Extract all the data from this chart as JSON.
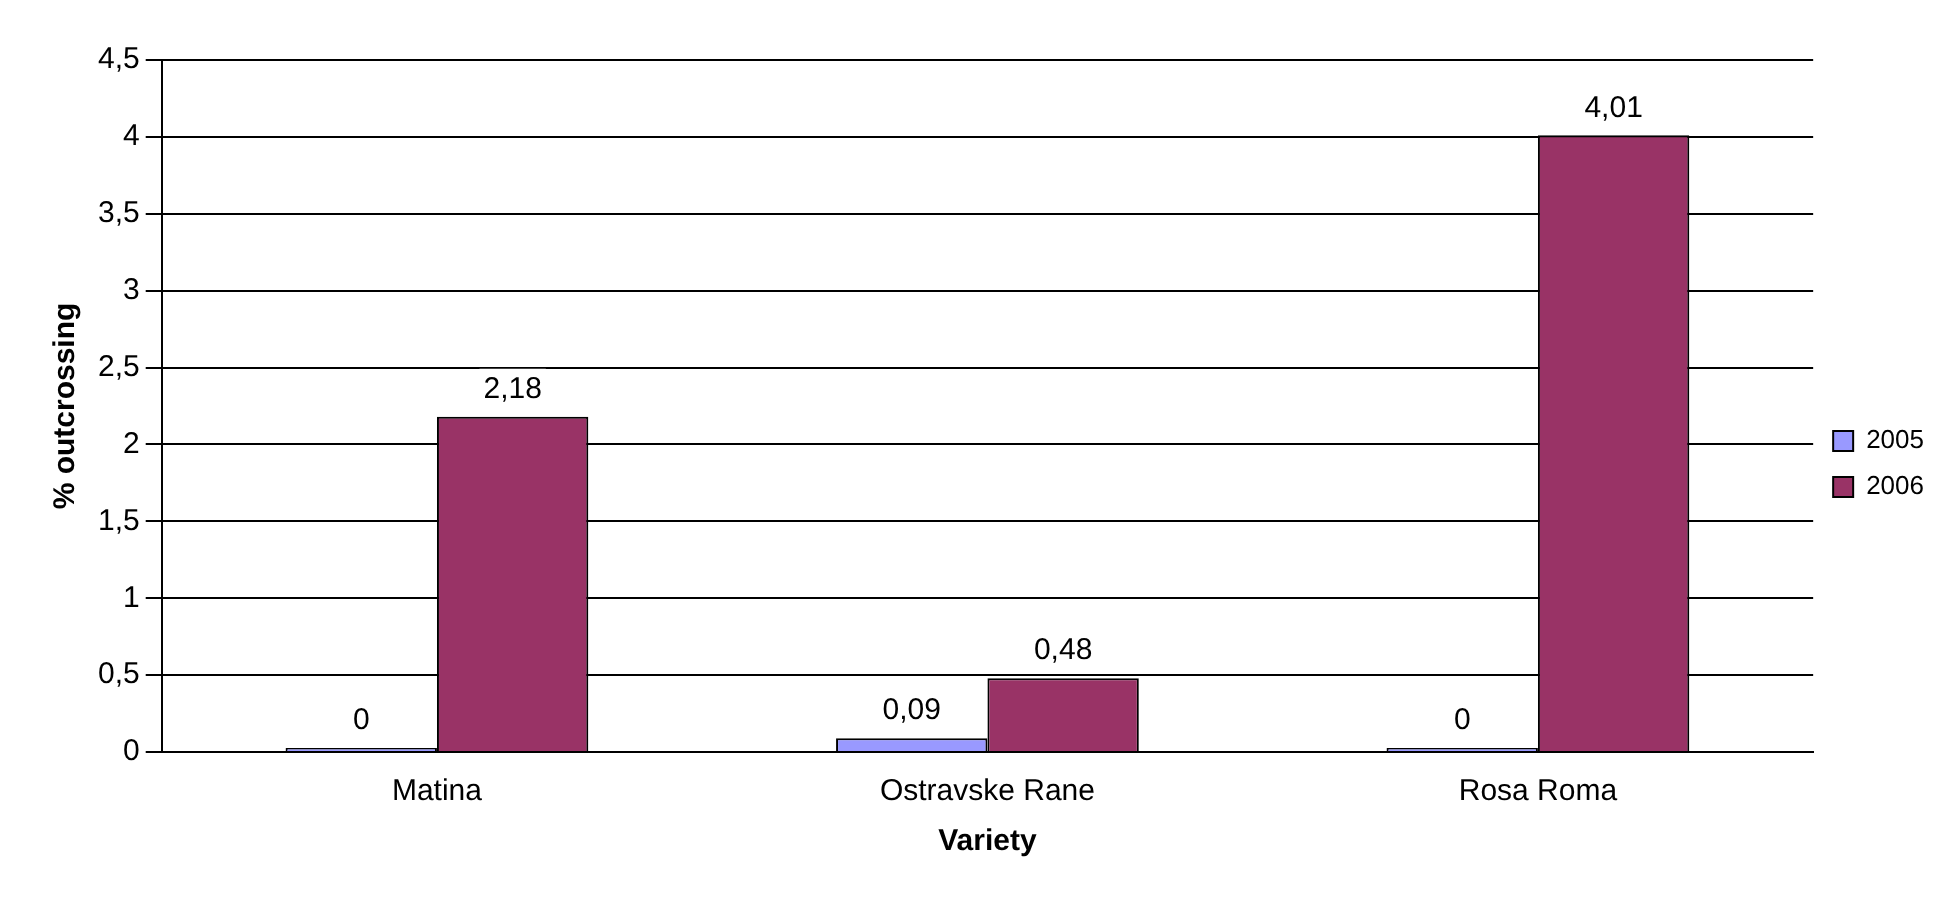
{
  "chart_data": {
    "type": "bar",
    "xlabel": "Variety",
    "ylabel": "% outcrossing",
    "categories": [
      "Matina",
      "Ostravske Rane",
      "Rosa Roma"
    ],
    "series": [
      {
        "name": "2005",
        "color": "#9999ff",
        "values": [
          0,
          0.09,
          0
        ],
        "value_labels": [
          "0",
          "0,09",
          "0"
        ]
      },
      {
        "name": "2006",
        "color": "#993366",
        "values": [
          2.18,
          0.48,
          4.01
        ],
        "value_labels": [
          "2,18",
          "0,48",
          "4,01"
        ]
      }
    ],
    "ylim": [
      0,
      4.5
    ],
    "yticks": [
      0,
      {
        "value": 0.5,
        "label": "0,5"
      },
      1,
      {
        "value": 1.5,
        "label": "1,5"
      },
      2,
      {
        "value": 2.5,
        "label": "2,5"
      },
      3,
      {
        "value": 3.5,
        "label": "3,5"
      },
      4,
      {
        "value": 4.5,
        "label": "4,5"
      }
    ],
    "grid": "y",
    "legend": "right"
  }
}
